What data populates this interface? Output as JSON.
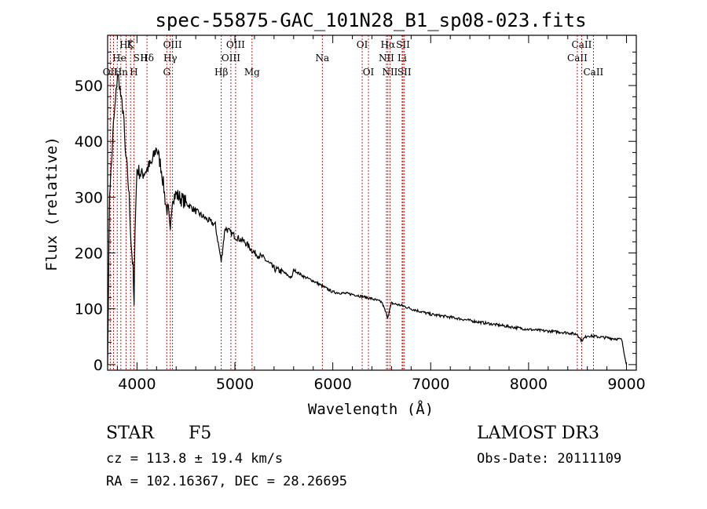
{
  "chart_data": {
    "type": "line",
    "title": "spec-55875-GAC_101N28_B1_sp08-023.fits",
    "xlabel": "Wavelength (Å)",
    "ylabel": "Flux (relative)",
    "xlim": [
      3700,
      9100
    ],
    "ylim": [
      -10,
      590
    ],
    "xticks": [
      4000,
      5000,
      6000,
      7000,
      8000,
      9000
    ],
    "yticks": [
      0,
      100,
      200,
      300,
      400,
      500
    ],
    "spectrum": {
      "name": "flux",
      "x": [
        3700,
        3720,
        3740,
        3760,
        3780,
        3800,
        3820,
        3840,
        3860,
        3880,
        3900,
        3920,
        3940,
        3960,
        3970,
        3980,
        4000,
        4050,
        4100,
        4150,
        4200,
        4250,
        4300,
        4320,
        4340,
        4360,
        4400,
        4500,
        4600,
        4700,
        4800,
        4860,
        4900,
        5000,
        5100,
        5200,
        5300,
        5400,
        5500,
        5580,
        5600,
        5700,
        5800,
        5900,
        6000,
        6200,
        6400,
        6500,
        6560,
        6600,
        6700,
        6800,
        7000,
        7200,
        7500,
        7800,
        8000,
        8200,
        8400,
        8500,
        8540,
        8600,
        8800,
        8950,
        9000
      ],
      "y": [
        0,
        310,
        360,
        430,
        470,
        520,
        505,
        470,
        455,
        380,
        350,
        300,
        220,
        170,
        100,
        250,
        350,
        340,
        350,
        360,
        390,
        350,
        280,
        275,
        230,
        300,
        305,
        290,
        275,
        262,
        250,
        185,
        245,
        230,
        220,
        200,
        190,
        172,
        165,
        155,
        170,
        158,
        150,
        140,
        130,
        126,
        118,
        112,
        85,
        110,
        106,
        100,
        90,
        85,
        76,
        68,
        63,
        60,
        57,
        54,
        43,
        52,
        48,
        45,
        0
      ]
    },
    "line_labels": [
      {
        "text": "Hδ",
        "wl": 4102,
        "row": 1
      },
      {
        "text": "OII",
        "wl": 3727,
        "row": 2
      },
      {
        "text": "OIII",
        "wl": 3760,
        "row": 3
      },
      {
        "text": "Hζ",
        "wl": 3889,
        "row": 0
      },
      {
        "text": "K",
        "wl": 3934,
        "row": 0
      },
      {
        "text": "He",
        "wl": 3820,
        "row": 1
      },
      {
        "text": "Hn",
        "wl": 3835,
        "row": 2
      },
      {
        "text": "H",
        "wl": 3969,
        "row": 2
      },
      {
        "text": "S",
        "wl": 3995,
        "row": 1
      },
      {
        "text": "II",
        "wl": 4070,
        "row": 1
      },
      {
        "text": "OIII",
        "wl": 4363,
        "row": 0
      },
      {
        "text": "Hγ",
        "wl": 4340,
        "row": 1
      },
      {
        "text": "G",
        "wl": 4304,
        "row": 2
      },
      {
        "text": "OIII",
        "wl": 5007,
        "row": 0
      },
      {
        "text": "OIII",
        "wl": 4959,
        "row": 1
      },
      {
        "text": "Hβ",
        "wl": 4861,
        "row": 2
      },
      {
        "text": "Mg",
        "wl": 5175,
        "row": 2
      },
      {
        "text": "Na",
        "wl": 5893,
        "row": 1
      },
      {
        "text": "OI",
        "wl": 6300,
        "row": 0
      },
      {
        "text": "OI",
        "wl": 6364,
        "row": 2
      },
      {
        "text": "Hα",
        "wl": 6563,
        "row": 0
      },
      {
        "text": "SII",
        "wl": 6717,
        "row": 0
      },
      {
        "text": "NII",
        "wl": 6548,
        "row": 1
      },
      {
        "text": "Li",
        "wl": 6708,
        "row": 1
      },
      {
        "text": "NII",
        "wl": 6584,
        "row": 2
      },
      {
        "text": "SII",
        "wl": 6731,
        "row": 2
      },
      {
        "text": "CaII",
        "wl": 8542,
        "row": 0
      },
      {
        "text": "CaII",
        "wl": 8498,
        "row": 1
      },
      {
        "text": "CaII",
        "wl": 8662,
        "row": 2
      }
    ],
    "line_wavelengths": [
      3727,
      3760,
      3798,
      3835,
      3889,
      3934,
      3969,
      4102,
      4304,
      4340,
      4363,
      4861,
      4959,
      5007,
      5175,
      5893,
      6300,
      6364,
      6548,
      6563,
      6584,
      6708,
      6717,
      6731,
      8498,
      8542,
      8662
    ],
    "line_color": "#cc0000"
  },
  "info": {
    "class": "STAR",
    "subclass": "F5",
    "survey": "LAMOST DR3",
    "cz": "cz = 113.8 ± 19.4 km/s",
    "obs_date": "Obs-Date: 20111109",
    "radec": "RA = 102.16367, DEC =  28.26695"
  }
}
